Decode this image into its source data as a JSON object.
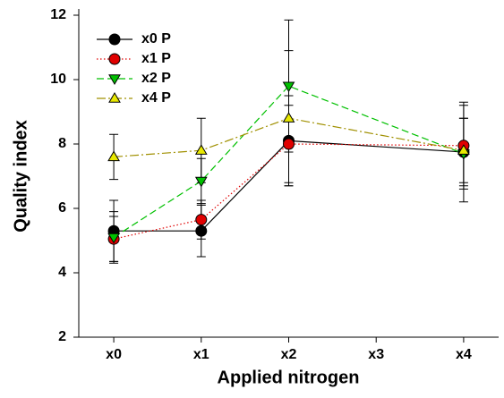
{
  "chart_data": {
    "type": "line",
    "x_label": "Applied nitrogen",
    "y_label": "Quality index",
    "x": [
      0,
      1,
      2,
      4
    ],
    "xlim": [
      -0.4,
      4.4
    ],
    "xticks": [
      {
        "value": 0,
        "label": "x0"
      },
      {
        "value": 1,
        "label": "x1"
      },
      {
        "value": 2,
        "label": "x2"
      },
      {
        "value": 3,
        "label": "x3"
      },
      {
        "value": 4,
        "label": "x4"
      }
    ],
    "ylim": [
      2,
      12
    ],
    "yticks": [
      2,
      4,
      6,
      8,
      10,
      12
    ],
    "legend": "upper-left",
    "series": [
      {
        "name": "x0 P",
        "color": "#000000",
        "marker": "circle",
        "dash": "solid",
        "values": [
          5.3,
          5.3,
          8.1,
          7.75
        ],
        "errors": [
          0.95,
          0.8,
          1.4,
          1.05
        ]
      },
      {
        "name": "x1 P",
        "color": "#e00000",
        "marker": "circle",
        "dash": "dotted",
        "values": [
          5.05,
          5.65,
          8.0,
          7.95
        ],
        "errors": [
          0.7,
          0.6,
          1.2,
          1.35
        ]
      },
      {
        "name": "x2 P",
        "color": "#00c000",
        "marker": "triangle-down",
        "dash": "dashed",
        "values": [
          5.1,
          6.85,
          9.8,
          7.7
        ],
        "errors": [
          0.8,
          0.7,
          2.05,
          1.5
        ]
      },
      {
        "name": "x4 P",
        "color": "#e8e800",
        "marker": "triangle-up",
        "dash": "dashdot",
        "values": [
          7.6,
          7.8,
          8.8,
          7.8
        ],
        "errors": [
          0.7,
          1.0,
          2.1,
          1.0
        ]
      }
    ]
  }
}
